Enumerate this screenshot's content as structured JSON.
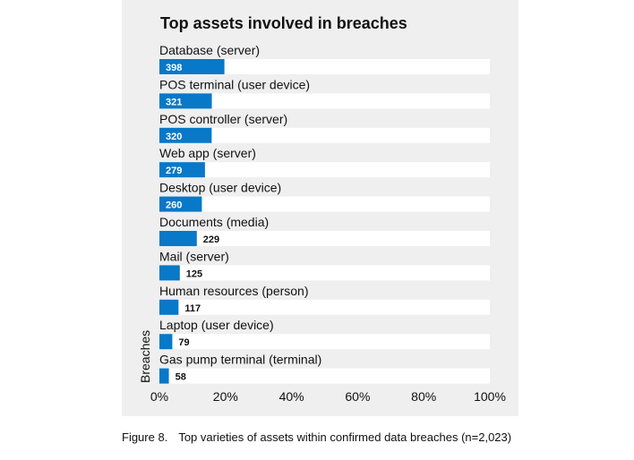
{
  "colors": {
    "panel": "#efefef",
    "track": "#ffffff",
    "bar": "#0878c8",
    "value_inside": "#ffffff",
    "value_outside": "#111111"
  },
  "chart_data": {
    "type": "bar",
    "orientation": "horizontal",
    "title": "Top assets involved in breaches",
    "ylabel": "Breaches",
    "xlabel": "",
    "categories": [
      "Database (server)",
      "POS terminal (user device)",
      "POS controller (server)",
      "Web app (server)",
      "Desktop (user device)",
      "Documents (media)",
      "Mail (server)",
      "Human resources (person)",
      "Laptop (user device)",
      "Gas pump terminal (terminal)"
    ],
    "values": [
      398,
      321,
      320,
      279,
      260,
      229,
      125,
      117,
      79,
      58
    ],
    "value_labels": [
      "398",
      "321",
      "320",
      "279",
      "260",
      "229",
      "125",
      "117",
      "79",
      "58"
    ],
    "total_n": 2023,
    "xlim": [
      0,
      100
    ],
    "x_units": "percent of breaches",
    "x_ticks": [
      "0%",
      "20%",
      "40%",
      "60%",
      "80%",
      "100%"
    ],
    "grid": false,
    "legend": "none"
  },
  "caption": {
    "figure_number": "Figure 8.",
    "text": "Top varieties of assets within confirmed data breaches (n=2,023)"
  }
}
